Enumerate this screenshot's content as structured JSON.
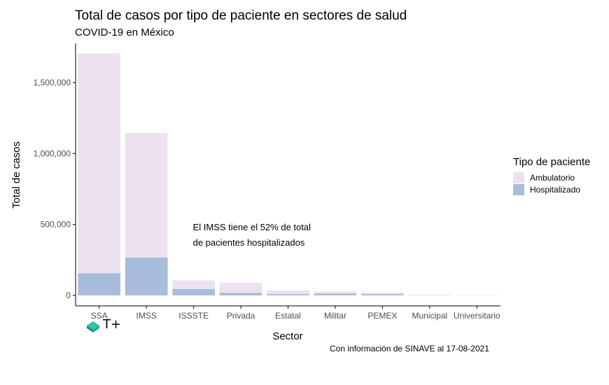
{
  "title": "Total de casos por tipo de paciente en sectores de salud",
  "subtitle": "COVID-19 en México",
  "caption": "Con información de SINAVE al 17-08-2021",
  "logo_text": "T+",
  "colors": {
    "ambulatorio": "#ebe1ef",
    "hospitalizado": "#a8bcdb",
    "axis": "#000000",
    "tick_label": "#4d4d4d"
  },
  "chart_data": {
    "type": "bar",
    "stacked": true,
    "xlabel": "Sector",
    "ylabel": "Total de casos",
    "categories": [
      "SSA",
      "IMSS",
      "ISSSTE",
      "Privada",
      "Estatal",
      "Militar",
      "PEMEX",
      "Municipal",
      "Universitario"
    ],
    "series": [
      {
        "name": "Hospitalizado",
        "values": [
          156000,
          266000,
          44000,
          18000,
          9000,
          13000,
          9000,
          1000,
          700
        ]
      },
      {
        "name": "Ambulatorio",
        "values": [
          1549000,
          879000,
          62000,
          70000,
          25000,
          14000,
          11000,
          3000,
          2300
        ]
      }
    ],
    "ylim": [
      0,
      1700000
    ],
    "yticks": [
      0,
      500000,
      1000000,
      1500000
    ],
    "ytick_labels": [
      "0",
      "500,000",
      "1,000,000",
      "1,500,000"
    ],
    "legend": {
      "title": "Tipo de paciente",
      "position": "right",
      "entries": [
        "Ambulatorio",
        "Hospitalizado"
      ]
    },
    "annotation": {
      "lines": [
        "El IMSS tiene el 52% de total",
        "de pacientes hospitalizados"
      ],
      "x_category": "ISSSTE",
      "y": 460000
    },
    "grid": false
  }
}
